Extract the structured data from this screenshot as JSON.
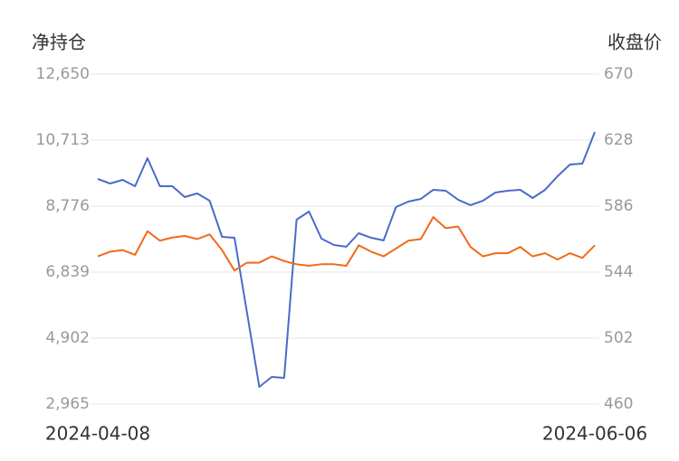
{
  "chart_data": {
    "type": "line",
    "y_title": "净持仓",
    "y2_title": "收盘价",
    "categories": [
      "2024-04-08",
      null,
      null,
      null,
      null,
      null,
      null,
      null,
      null,
      null,
      null,
      null,
      null,
      null,
      null,
      null,
      null,
      null,
      null,
      null,
      null,
      null,
      null,
      null,
      null,
      null,
      null,
      null,
      null,
      null,
      null,
      null,
      null,
      null,
      null,
      null,
      null,
      null,
      null,
      null,
      "2024-06-06"
    ],
    "series": [
      {
        "color": "#4a6bc9",
        "axis": "y",
        "values": [
          9572,
          9439,
          9546,
          9360,
          10182,
          9360,
          9360,
          9041,
          9148,
          8935,
          7874,
          7847,
          5672,
          3469,
          3761,
          3735,
          8378,
          8617,
          7821,
          7635,
          7582,
          7980,
          7847,
          7768,
          8750,
          8909,
          8988,
          9254,
          9227,
          8962,
          8803,
          8935,
          9174,
          9227,
          9254,
          9015,
          9254,
          9652,
          9997,
          10023,
          10952
        ]
      },
      {
        "color": "#f06a1a",
        "axis": "y2",
        "values": [
          554,
          557,
          558,
          555,
          570,
          564,
          566,
          567,
          565,
          568,
          558,
          545,
          550,
          550,
          554,
          551,
          549,
          548,
          549,
          549,
          548,
          561,
          557,
          554,
          559,
          564,
          565,
          579,
          572,
          573,
          560,
          554,
          556,
          556,
          560,
          554,
          556,
          552,
          556,
          553,
          561
        ]
      }
    ],
    "ylim": [
      2965,
      12650
    ],
    "yticks": [
      {
        "value": 2965,
        "label": "2,965"
      },
      {
        "value": 4902,
        "label": "4,902"
      },
      {
        "value": 6839,
        "label": "6,839"
      },
      {
        "value": 8776,
        "label": "8,776"
      },
      {
        "value": 10713,
        "label": "10,713"
      },
      {
        "value": 12650,
        "label": "12,650"
      }
    ],
    "y2lim": [
      460,
      670
    ],
    "y2ticks": [
      460,
      502,
      544,
      586,
      628,
      670
    ],
    "grid": true
  }
}
